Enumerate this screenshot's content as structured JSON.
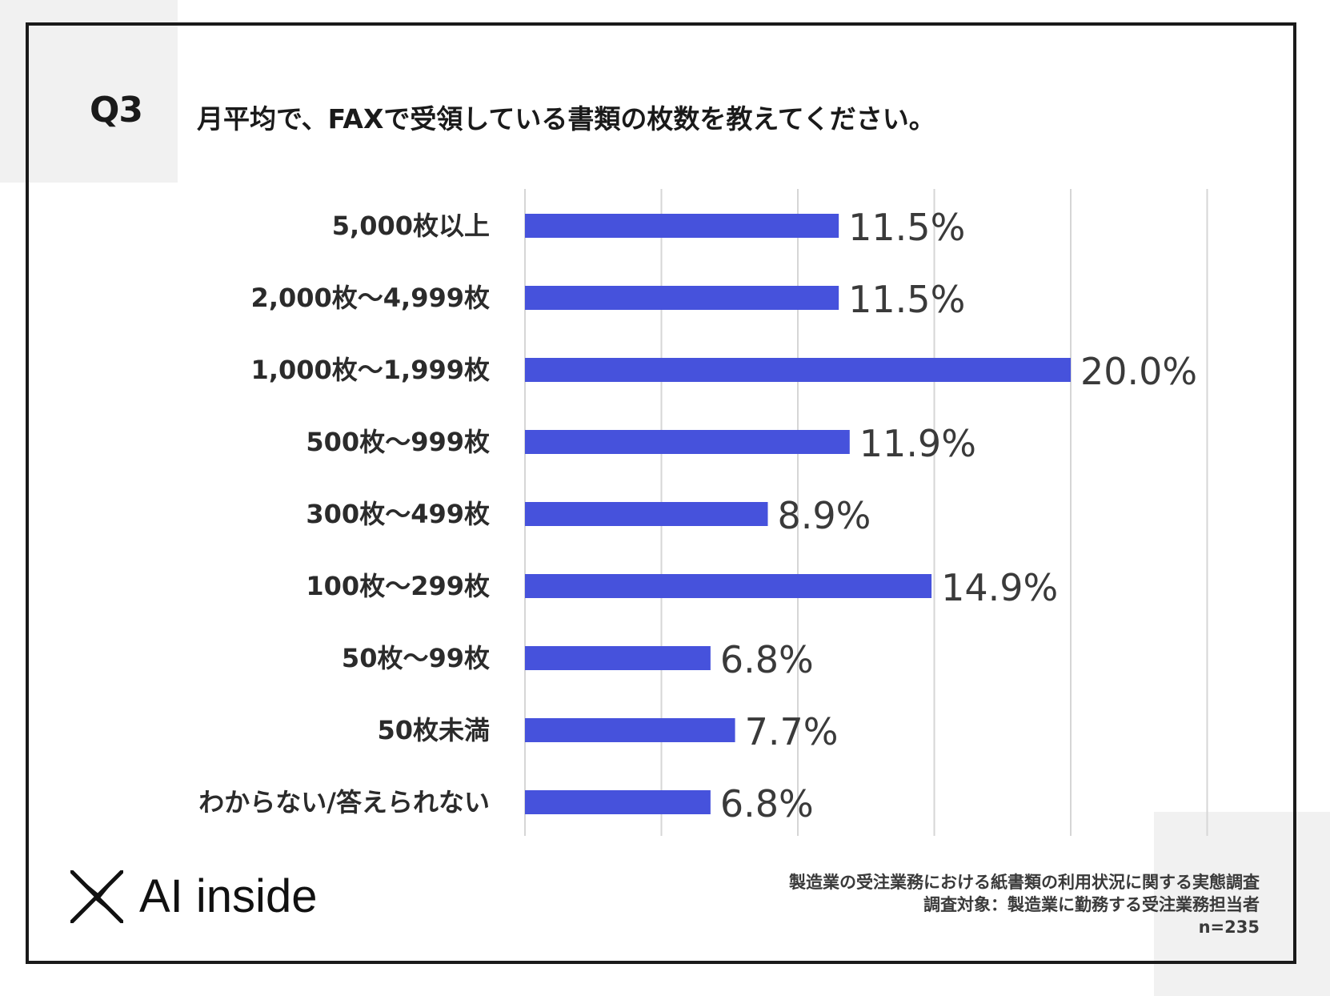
{
  "question": {
    "label": "Q3",
    "text": "月平均で、FAXで受領している書類の枚数を教えてください。"
  },
  "chart_data": {
    "type": "bar",
    "orientation": "horizontal",
    "title": "月平均で、FAXで受領している書類の枚数を教えてください。",
    "categories": [
      "5,000枚以上",
      "2,000枚～4,999枚",
      "1,000枚～1,999枚",
      "500枚～999枚",
      "300枚～499枚",
      "100枚～299枚",
      "50枚～99枚",
      "50枚未満",
      "わからない/答えられない"
    ],
    "values": [
      11.5,
      11.5,
      20.0,
      11.9,
      8.9,
      14.9,
      6.8,
      7.7,
      6.8
    ],
    "value_labels": [
      "11.5%",
      "11.5%",
      "20.0%",
      "11.9%",
      "8.9%",
      "14.9%",
      "6.8%",
      "7.7%",
      "6.8%"
    ],
    "xlim": [
      0,
      25
    ],
    "gridlines": [
      0,
      5,
      10,
      15,
      20,
      25
    ],
    "grid": true,
    "bar_color": "#4652dc",
    "xlabel": "",
    "ylabel": ""
  },
  "logo": {
    "text": "AI inside",
    "icon": "x-logo-icon"
  },
  "notes": {
    "survey_title": "製造業の受注業務における紙書類の利用状況に関する実態調査",
    "target": "調査対象：製造業に勤務する受注業務担当者",
    "sample": "n=235"
  }
}
